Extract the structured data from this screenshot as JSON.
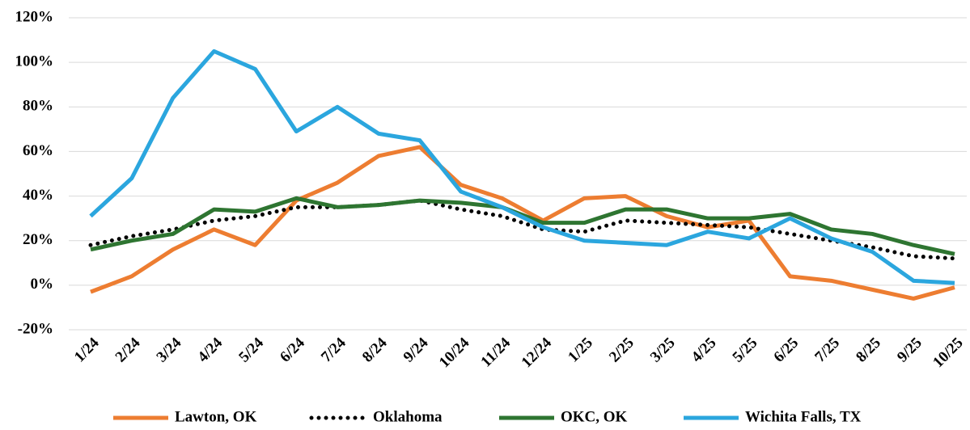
{
  "chart_data": {
    "type": "line",
    "categories": [
      "1/24",
      "2/24",
      "3/24",
      "4/24",
      "5/24",
      "6/24",
      "7/24",
      "8/24",
      "9/24",
      "10/24",
      "11/24",
      "12/24",
      "1/25",
      "2/25",
      "3/25",
      "4/25",
      "5/25",
      "6/25",
      "7/25",
      "8/25",
      "9/25",
      "10/25"
    ],
    "series": [
      {
        "name": "Lawton, OK",
        "color": "#ed7d31",
        "style": "solid",
        "values": [
          -3,
          4,
          16,
          25,
          18,
          38,
          46,
          58,
          62,
          45,
          39,
          29,
          39,
          40,
          31,
          26,
          29,
          4,
          2,
          -2,
          -6,
          -1
        ]
      },
      {
        "name": "Oklahoma",
        "color": "#000000",
        "style": "dotted",
        "values": [
          18,
          22,
          25,
          29,
          31,
          35,
          35,
          36,
          38,
          34,
          31,
          25,
          24,
          29,
          28,
          27,
          26,
          23,
          20,
          17,
          13,
          12
        ]
      },
      {
        "name": "OKC, OK",
        "color": "#2e7531",
        "style": "solid",
        "values": [
          16,
          20,
          23,
          34,
          33,
          39,
          35,
          36,
          38,
          37,
          35,
          28,
          28,
          34,
          34,
          30,
          30,
          32,
          25,
          23,
          18,
          14
        ]
      },
      {
        "name": "Wichita Falls, TX",
        "color": "#2ba6de",
        "style": "solid",
        "values": [
          31,
          48,
          84,
          105,
          97,
          69,
          80,
          68,
          65,
          42,
          35,
          26,
          20,
          19,
          18,
          24,
          21,
          30,
          21,
          15,
          2,
          1
        ]
      }
    ],
    "ylim": [
      -20,
      120
    ],
    "yticks": [
      {
        "value": -20,
        "label": "-20%"
      },
      {
        "value": 0,
        "label": "0%"
      },
      {
        "value": 20,
        "label": "20%"
      },
      {
        "value": 40,
        "label": "40%"
      },
      {
        "value": 60,
        "label": "60%"
      },
      {
        "value": 80,
        "label": "80%"
      },
      {
        "value": 100,
        "label": "100%"
      },
      {
        "value": 120,
        "label": "120%"
      }
    ],
    "grid": true,
    "legend": "bottom"
  }
}
